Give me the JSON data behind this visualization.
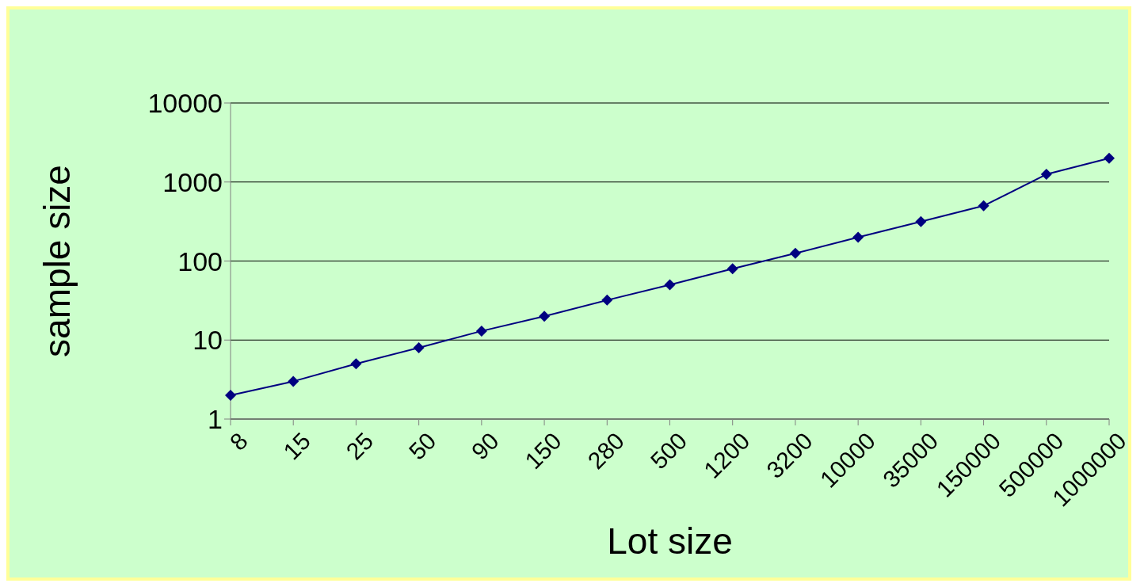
{
  "chart_data": {
    "type": "line",
    "xlabel": "Lot size",
    "ylabel": "sample size",
    "categories": [
      "8",
      "15",
      "25",
      "50",
      "90",
      "150",
      "280",
      "500",
      "1200",
      "3200",
      "10000",
      "35000",
      "150000",
      "500000",
      "1000000"
    ],
    "series": [
      {
        "color": "#000080",
        "values": [
          2,
          3,
          5,
          8,
          13,
          20,
          32,
          50,
          80,
          125,
          200,
          315,
          500,
          1250,
          2000
        ]
      }
    ],
    "ylim": [
      1,
      10000
    ],
    "yticks": [
      1,
      10,
      100,
      1000,
      10000
    ],
    "log": "y",
    "grid": "y",
    "legend": false,
    "marker": "diamond",
    "line_style": "solid"
  }
}
